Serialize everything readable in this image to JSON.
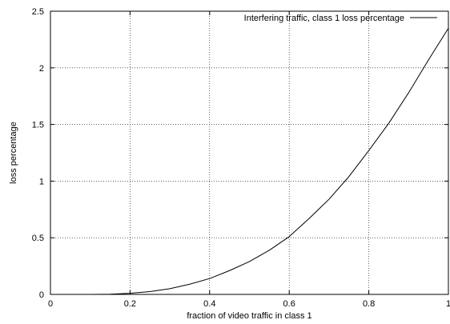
{
  "chart_data": {
    "type": "line",
    "title": "",
    "xlabel": "fraction of video traffic in class 1",
    "ylabel": "loss percentage",
    "xlim": [
      0,
      1
    ],
    "ylim": [
      0,
      2.5
    ],
    "xticks": [
      "0",
      "0.2",
      "0.4",
      "0.6",
      "0.8",
      "1"
    ],
    "yticks": [
      "0",
      "0.5",
      "1",
      "1.5",
      "2",
      "2.5"
    ],
    "grid": true,
    "legend_position": "top-right",
    "series": [
      {
        "name": "Interfering traffic, class 1 loss percentage",
        "color": "#000000",
        "x": [
          0.0,
          0.05,
          0.1,
          0.15,
          0.2,
          0.25,
          0.3,
          0.35,
          0.4,
          0.45,
          0.5,
          0.55,
          0.6,
          0.65,
          0.7,
          0.75,
          0.8,
          0.85,
          0.9,
          0.95,
          1.0
        ],
        "y": [
          0.0,
          0.0,
          0.0,
          0.002,
          0.01,
          0.025,
          0.05,
          0.09,
          0.14,
          0.21,
          0.29,
          0.39,
          0.51,
          0.67,
          0.84,
          1.04,
          1.27,
          1.51,
          1.78,
          2.07,
          2.35
        ]
      }
    ]
  }
}
